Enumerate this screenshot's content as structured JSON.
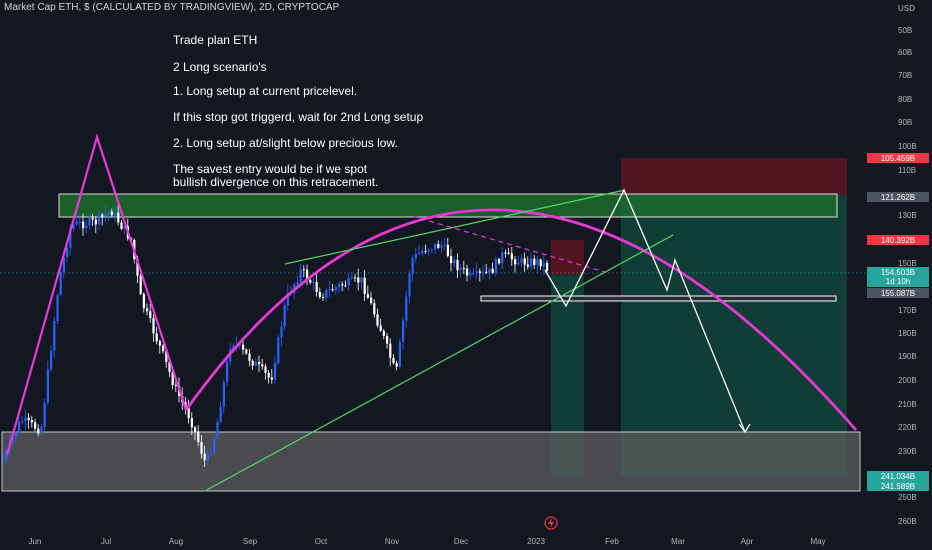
{
  "header": {
    "title": "Market Cap ETH, $ (CALCULATED BY TRADINGVIEW), 2D, CRYPTOCAP"
  },
  "notes": {
    "line1": "Trade plan ETH",
    "line2": "2 Long scenario's",
    "line3": "1. Long setup at current pricelevel.",
    "line4": "If this stop got triggerd, wait for 2nd Long setup",
    "line5": "2. Long setup at/slight below precious low.",
    "line6": "The savest entry would be if we spot",
    "line7": " bullish divergence on this retracement."
  },
  "chart_data": {
    "type": "candlestick",
    "title": "Market Cap ETH, $ (CALCULATED BY TRADINGVIEW), 2D, CRYPTOCAP",
    "y_unit": "USD",
    "y_scale": "inverted",
    "y_ticks": [
      "50B",
      "60B",
      "70B",
      "80B",
      "90B",
      "100B",
      "110B",
      "130B",
      "150B",
      "170B",
      "180B",
      "190B",
      "200B",
      "210B",
      "220B",
      "230B",
      "250B",
      "260B"
    ],
    "x_ticks": [
      "Jun",
      "Jul",
      "Aug",
      "Sep",
      "Oct",
      "Nov",
      "Dec",
      "2023",
      "Feb",
      "Mar",
      "Apr",
      "May"
    ],
    "price_tags": [
      {
        "label": "105.459B",
        "color": "#f23645"
      },
      {
        "label": "121.262B",
        "color": "#4e5362"
      },
      {
        "label": "140.392B",
        "color": "#f23645"
      },
      {
        "label": "154.503B",
        "sub": "1d 10h",
        "color": "#26a69a"
      },
      {
        "label": "155.087B",
        "color": "#4e5362"
      },
      {
        "label": "241.034B",
        "color": "#26a69a"
      },
      {
        "label": "241.589B",
        "color": "#26a69a"
      }
    ],
    "last_price": "154.503B",
    "countdown": "1d 10h"
  }
}
